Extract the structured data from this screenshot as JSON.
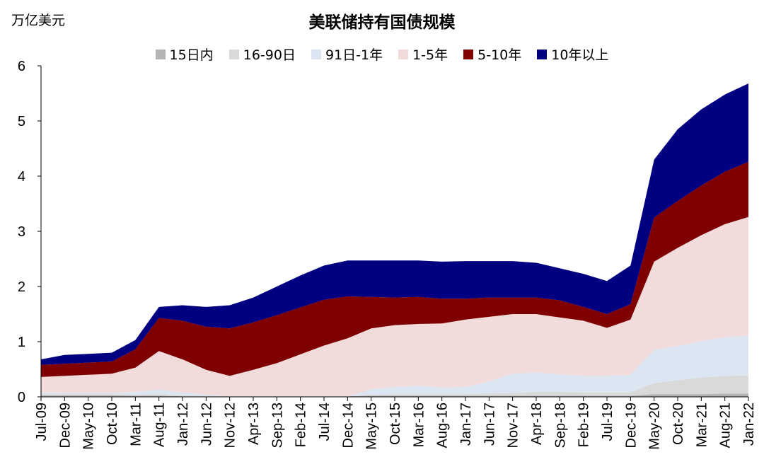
{
  "unit_label": "万亿美元",
  "chart_data": {
    "type": "area",
    "stacked": true,
    "title": "美联储持有国债规模",
    "ylim": [
      0,
      6
    ],
    "yticks": [
      0,
      1,
      2,
      3,
      4,
      5,
      6
    ],
    "grid": false,
    "legend_position": "top",
    "x": [
      "Jul-09",
      "Dec-09",
      "May-10",
      "Oct-10",
      "Mar-11",
      "Aug-11",
      "Jan-12",
      "Jun-12",
      "Nov-12",
      "Apr-13",
      "Sep-13",
      "Feb-14",
      "Jul-14",
      "Dec-14",
      "May-15",
      "Oct-15",
      "Mar-16",
      "Aug-16",
      "Jan-17",
      "Jun-17",
      "Nov-17",
      "Apr-18",
      "Sep-18",
      "Feb-19",
      "Jul-19",
      "Dec-19",
      "May-20",
      "Oct-20",
      "Mar-21",
      "Aug-21",
      "Jan-22"
    ],
    "series": [
      {
        "name": "15日内",
        "color": "#b3b3b3",
        "values": [
          0.03,
          0.03,
          0.03,
          0.03,
          0.02,
          0.02,
          0.01,
          0.01,
          0.01,
          0.01,
          0.01,
          0.01,
          0.01,
          0.01,
          0.02,
          0.02,
          0.02,
          0.02,
          0.02,
          0.02,
          0.02,
          0.02,
          0.02,
          0.02,
          0.02,
          0.02,
          0.05,
          0.05,
          0.05,
          0.06,
          0.06
        ]
      },
      {
        "name": "16-90日",
        "color": "#d9d9d9",
        "values": [
          0.02,
          0.02,
          0.02,
          0.02,
          0.02,
          0.03,
          0.02,
          0.01,
          0.0,
          0.0,
          0.0,
          0.0,
          0.0,
          0.0,
          0.02,
          0.03,
          0.03,
          0.03,
          0.03,
          0.04,
          0.05,
          0.07,
          0.07,
          0.06,
          0.06,
          0.06,
          0.2,
          0.25,
          0.3,
          0.32,
          0.33
        ]
      },
      {
        "name": "91日-1年",
        "color": "#dce6f2",
        "values": [
          0.03,
          0.02,
          0.02,
          0.02,
          0.05,
          0.08,
          0.05,
          0.02,
          0.0,
          0.0,
          0.0,
          0.0,
          0.0,
          0.0,
          0.1,
          0.13,
          0.15,
          0.12,
          0.13,
          0.22,
          0.35,
          0.35,
          0.32,
          0.3,
          0.3,
          0.32,
          0.6,
          0.62,
          0.66,
          0.7,
          0.72
        ]
      },
      {
        "name": "1-5年",
        "color": "#f2dcdb",
        "values": [
          0.28,
          0.31,
          0.33,
          0.35,
          0.44,
          0.7,
          0.6,
          0.45,
          0.37,
          0.48,
          0.6,
          0.76,
          0.92,
          1.05,
          1.1,
          1.12,
          1.12,
          1.16,
          1.22,
          1.17,
          1.08,
          1.06,
          1.03,
          1.0,
          0.87,
          1.0,
          1.6,
          1.78,
          1.92,
          2.05,
          2.15
        ]
      },
      {
        "name": "5-10年",
        "color": "#7f0000",
        "values": [
          0.22,
          0.22,
          0.22,
          0.22,
          0.33,
          0.6,
          0.7,
          0.78,
          0.86,
          0.86,
          0.87,
          0.85,
          0.83,
          0.76,
          0.57,
          0.5,
          0.49,
          0.45,
          0.38,
          0.35,
          0.3,
          0.3,
          0.31,
          0.25,
          0.25,
          0.28,
          0.8,
          0.85,
          0.9,
          0.95,
          1.0
        ]
      },
      {
        "name": "10年以上",
        "color": "#000080",
        "values": [
          0.1,
          0.16,
          0.16,
          0.16,
          0.17,
          0.2,
          0.28,
          0.36,
          0.42,
          0.45,
          0.52,
          0.58,
          0.62,
          0.65,
          0.66,
          0.67,
          0.66,
          0.67,
          0.68,
          0.66,
          0.66,
          0.63,
          0.58,
          0.6,
          0.6,
          0.7,
          1.05,
          1.3,
          1.38,
          1.4,
          1.42
        ]
      }
    ]
  }
}
